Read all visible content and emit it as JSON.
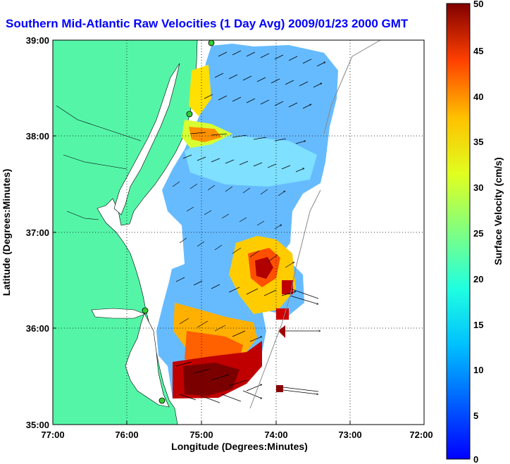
{
  "title": "Southern Mid-Atlantic Raw Velocities (1 Day Avg) 2009/01/23 2000 GMT",
  "x_axis": {
    "label": "Longitude (Degrees:Minutes)",
    "ticks": [
      "77:00",
      "76:00",
      "75:00",
      "74:00",
      "73:00",
      "72:00"
    ]
  },
  "y_axis": {
    "label": "Latitude (Degrees:Minutes)",
    "ticks": [
      "39:00",
      "38:00",
      "37:00",
      "36:00",
      "35:00"
    ]
  },
  "colorbar": {
    "label": "Surface Velocity (cm/s)",
    "ticks": [
      "50",
      "45",
      "40",
      "35",
      "30",
      "25",
      "20",
      "15",
      "10",
      "5",
      "0"
    ],
    "min": 0,
    "max": 50
  },
  "colors": {
    "land": "#55f5a8",
    "water": "#ffffff",
    "title": "#0000ff",
    "station": "#33cc33"
  },
  "extent": {
    "lon": [
      -77,
      -72
    ],
    "lat": [
      35,
      39
    ]
  }
}
